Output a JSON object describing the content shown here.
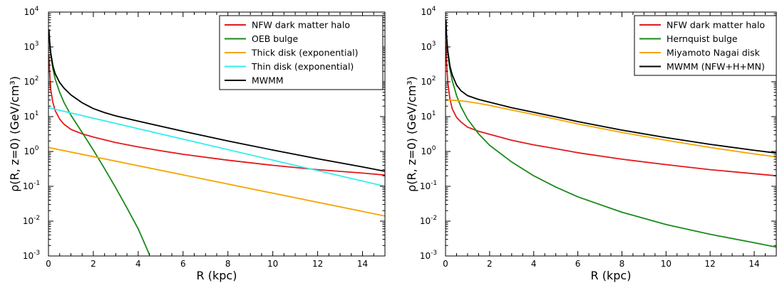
{
  "chart_data": [
    {
      "type": "line",
      "xlabel": "R (kpc)",
      "ylabel": "ρ(R, z=0) (GeV/cm³)",
      "xlim": [
        0,
        15
      ],
      "ylim": [
        0.001,
        10000
      ],
      "yscale": "log",
      "xticks": [
        0,
        2,
        4,
        6,
        8,
        10,
        12,
        14
      ],
      "yticks": [
        {
          "value": 0.001,
          "base": "10",
          "exp": "-3"
        },
        {
          "value": 0.01,
          "base": "10",
          "exp": "-2"
        },
        {
          "value": 0.1,
          "base": "10",
          "exp": "-1"
        },
        {
          "value": 1,
          "base": "10",
          "exp": "0"
        },
        {
          "value": 10,
          "base": "10",
          "exp": "1"
        },
        {
          "value": 100,
          "base": "10",
          "exp": "2"
        },
        {
          "value": 1000,
          "base": "10",
          "exp": "3"
        },
        {
          "value": 10000,
          "base": "10",
          "exp": "4"
        }
      ],
      "legend_position": "top-right",
      "series": [
        {
          "name": "NFW dark matter halo",
          "color": "#e41a1c",
          "x": [
            0.02,
            0.05,
            0.1,
            0.2,
            0.3,
            0.5,
            0.7,
            1,
            1.5,
            2,
            3,
            4,
            5,
            6,
            8,
            10,
            12,
            14,
            15
          ],
          "y": [
            600,
            200,
            60,
            25,
            15,
            8.5,
            6,
            4.3,
            3.2,
            2.6,
            1.8,
            1.35,
            1.05,
            0.83,
            0.56,
            0.4,
            0.3,
            0.24,
            0.21
          ]
        },
        {
          "name": "OEB bulge",
          "color": "#1a8a1a",
          "x": [
            0.02,
            0.05,
            0.1,
            0.2,
            0.3,
            0.5,
            0.7,
            1,
            1.5,
            2,
            2.5,
            3,
            3.5,
            4,
            4.5
          ],
          "y": [
            2500,
            1200,
            600,
            230,
            120,
            50,
            25,
            11,
            3.5,
            1.1,
            0.32,
            0.09,
            0.024,
            0.006,
            0.0011
          ]
        },
        {
          "name": "Thick disk (exponential)",
          "color": "#f5a500",
          "x": [
            0,
            15
          ],
          "y": [
            1.3,
            0.014
          ]
        },
        {
          "name": "Thin disk (exponential)",
          "color": "#33eeee",
          "x": [
            0,
            15
          ],
          "y": [
            18,
            0.1
          ]
        },
        {
          "name": "MWMM",
          "color": "#000000",
          "x": [
            0.02,
            0.05,
            0.1,
            0.2,
            0.3,
            0.5,
            0.7,
            1,
            1.5,
            2,
            2.5,
            3,
            4,
            5,
            6,
            8,
            10,
            12,
            14,
            15
          ],
          "y": [
            3200,
            1500,
            700,
            280,
            170,
            95,
            65,
            42,
            25,
            17,
            13,
            10.5,
            7.4,
            5.3,
            3.8,
            2.0,
            1.1,
            0.62,
            0.36,
            0.27
          ]
        }
      ]
    },
    {
      "type": "line",
      "xlabel": "R (kpc)",
      "ylabel": "ρ(R, z=0) (GeV/cm³)",
      "xlim": [
        0,
        15
      ],
      "ylim": [
        0.001,
        10000
      ],
      "yscale": "log",
      "xticks": [
        0,
        2,
        4,
        6,
        8,
        10,
        12,
        14
      ],
      "yticks": [
        {
          "value": 0.001,
          "base": "10",
          "exp": "-3"
        },
        {
          "value": 0.01,
          "base": "10",
          "exp": "-2"
        },
        {
          "value": 0.1,
          "base": "10",
          "exp": "-1"
        },
        {
          "value": 1,
          "base": "10",
          "exp": "0"
        },
        {
          "value": 10,
          "base": "10",
          "exp": "1"
        },
        {
          "value": 100,
          "base": "10",
          "exp": "2"
        },
        {
          "value": 1000,
          "base": "10",
          "exp": "3"
        },
        {
          "value": 10000,
          "base": "10",
          "exp": "4"
        }
      ],
      "legend_position": "top-right",
      "series": [
        {
          "name": "NFW dark matter halo",
          "color": "#e41a1c",
          "x": [
            0.02,
            0.05,
            0.1,
            0.2,
            0.3,
            0.5,
            0.7,
            1,
            1.5,
            2,
            3,
            4,
            5,
            6,
            8,
            10,
            12,
            14,
            15
          ],
          "y": [
            1500,
            350,
            100,
            32,
            17,
            9.5,
            7,
            5,
            3.8,
            3.1,
            2.1,
            1.55,
            1.2,
            0.92,
            0.6,
            0.42,
            0.3,
            0.23,
            0.2
          ]
        },
        {
          "name": "Hernquist bulge",
          "color": "#1a8a1a",
          "x": [
            0.02,
            0.05,
            0.1,
            0.2,
            0.3,
            0.5,
            0.7,
            1,
            1.5,
            2,
            3,
            4,
            5,
            6,
            8,
            10,
            12,
            14,
            15
          ],
          "y": [
            4500,
            1700,
            700,
            230,
            110,
            40,
            19,
            8.5,
            3.2,
            1.5,
            0.5,
            0.2,
            0.095,
            0.05,
            0.018,
            0.008,
            0.0042,
            0.0024,
            0.0018
          ]
        },
        {
          "name": "Miyamoto Nagai disk",
          "color": "#f5a500",
          "x": [
            0,
            0.5,
            1,
            1.5,
            2,
            3,
            4,
            5,
            6,
            8,
            10,
            12,
            14,
            15
          ],
          "y": [
            30,
            29,
            27,
            24,
            21,
            15.5,
            11.5,
            8.5,
            6.2,
            3.5,
            2.1,
            1.3,
            0.85,
            0.7
          ]
        },
        {
          "name": "MWMM (NFW+H+MN)",
          "color": "#000000",
          "x": [
            0.02,
            0.05,
            0.1,
            0.2,
            0.3,
            0.5,
            0.7,
            1,
            1.5,
            2,
            3,
            4,
            5,
            6,
            8,
            10,
            12,
            14,
            15
          ],
          "y": [
            6000,
            2000,
            800,
            280,
            160,
            80,
            55,
            40,
            31,
            26,
            18,
            13.3,
            9.8,
            7.2,
            4.1,
            2.5,
            1.6,
            1.08,
            0.9
          ]
        }
      ]
    }
  ]
}
